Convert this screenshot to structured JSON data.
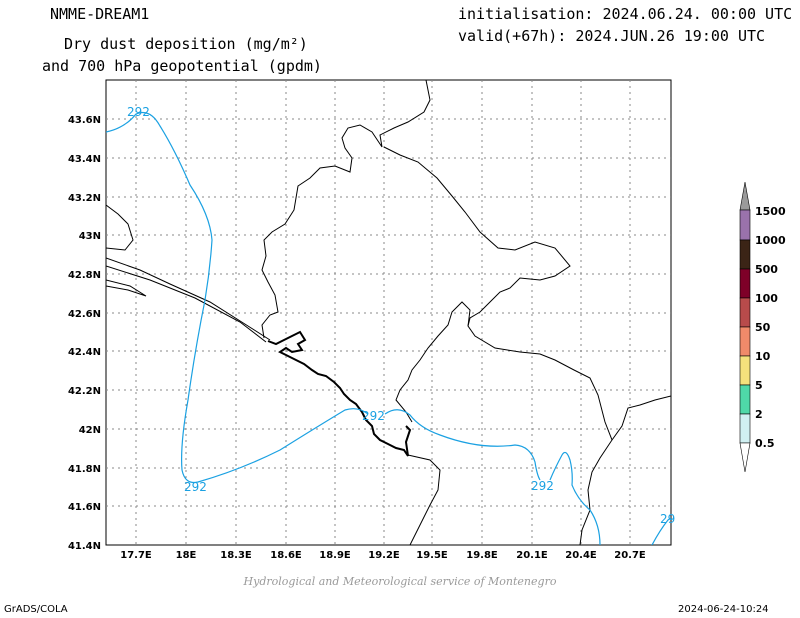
{
  "header": {
    "model": "NMME-DREAM1",
    "title_line1": "Dry dust deposition (mg/m²)",
    "title_line2": "and 700 hPa geopotential (gpdm)",
    "initialisation": "initialisation: 2024.06.24. 00:00 UTC",
    "valid": "valid(+67h): 2024.JUN.26 19:00 UTC"
  },
  "map": {
    "lon_ticks": [
      "17.7E",
      "18E",
      "18.3E",
      "18.6E",
      "18.9E",
      "19.2E",
      "19.5E",
      "19.8E",
      "20.1E",
      "20.4E",
      "20.7E"
    ],
    "lat_ticks": [
      "43.6N",
      "43.4N",
      "43.2N",
      "43N",
      "42.8N",
      "42.6N",
      "42.4N",
      "42.2N",
      "42N",
      "41.8N",
      "41.6N",
      "41.4N"
    ],
    "contour_labels": [
      "292",
      "292",
      "292",
      "292",
      "29"
    ],
    "contour_color": "#1ba1e2",
    "gridlines": "dotted"
  },
  "legend": {
    "levels": [
      "1500",
      "1000",
      "500",
      "100",
      "50",
      "10",
      "5",
      "2",
      "0.5"
    ],
    "colors": [
      "#9a9a9a",
      "#9a72ab",
      "#3b2416",
      "#7e0028",
      "#b84b4b",
      "#f08a6a",
      "#f4e17c",
      "#4fd8a8",
      "#d0f0f2"
    ]
  },
  "footer": {
    "credit": "Hydrological and Meteorological service of Montenegro",
    "software": "GrADS/COLA",
    "timestamp": "2024-06-24-10:24"
  }
}
